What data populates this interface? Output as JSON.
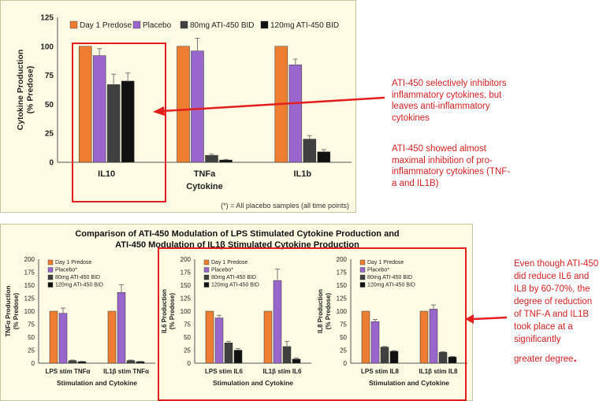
{
  "series_colors": [
    "#ed7d31",
    "#9966cc",
    "#404040",
    "#111111"
  ],
  "highlight_color": "#e21e1e",
  "top_footnote": "(*) = All placebo samples (all time points)",
  "bottom_title_line1": "Comparison of ATI-450 Modulation of LPS Stimulated Cytokine Production and",
  "bottom_title_line2": "ATI-450 Modulation of IL1β Stimulated Cytokine Production",
  "annotations": {
    "top_right_1": "ATI-450 selectively inhibitors inflammatory cytokines, but leaves anti-inflammatory cytokines",
    "top_right_2": "ATI-450 showed almost maximal inhibition of pro-inflammatory cytokines (TNF-a and IL1B)",
    "bottom_right": "Even though ATI-450 did reduce IL6 and IL8 by 60-70%, the degree of reduction of TNF-A and IL1B took place at a significantly",
    "bottom_right_tail": "greater degree",
    "bottom_right_period": "."
  },
  "chart_data": [
    {
      "type": "bar",
      "categories": [
        "IL10",
        "TNFa",
        "IL1b"
      ],
      "series": [
        {
          "name": "Day 1 Predose",
          "values": [
            100,
            100,
            100
          ],
          "errors": [
            0,
            0,
            0
          ]
        },
        {
          "name": "Placebo",
          "values": [
            92,
            96,
            84
          ],
          "errors": [
            6,
            11,
            5
          ]
        },
        {
          "name": "80mg ATI-450 BID",
          "values": [
            67,
            6,
            20
          ],
          "errors": [
            9,
            1,
            3
          ]
        },
        {
          "name": "120mg ATI-450 BID",
          "values": [
            70,
            2,
            9
          ],
          "errors": [
            7,
            0.5,
            2
          ]
        }
      ],
      "title": "",
      "xlabel": "Cytokine",
      "ylabel_line1": "Cytokine Production",
      "ylabel_line2": "(% Predose)",
      "ylim": [
        0,
        125
      ],
      "yticks": [
        "0",
        "25",
        "50",
        "75",
        "100",
        "125"
      ],
      "legend": "top",
      "grid": false
    },
    {
      "type": "bar",
      "categories": [
        "LPS stim TNFα",
        "IL1β stim TNFα"
      ],
      "series": [
        {
          "name": "Day 1 Predose",
          "values": [
            100,
            100
          ],
          "errors": [
            0,
            0
          ]
        },
        {
          "name": "Placebo*",
          "values": [
            96,
            136
          ],
          "errors": [
            10,
            15
          ]
        },
        {
          "name": "80mg ATI-450 BID",
          "values": [
            5,
            5
          ],
          "errors": [
            1,
            1
          ]
        },
        {
          "name": "120mg ATI-450 BID",
          "values": [
            3,
            3
          ],
          "errors": [
            0.5,
            0.5
          ]
        }
      ],
      "xlabel": "Stimulation and Cytokine",
      "ylabel_line1": "TNFα Production",
      "ylabel_line2": "(% Predose)",
      "ylim": [
        0,
        200
      ],
      "yticks": [
        "0",
        "25",
        "50",
        "75",
        "100",
        "125",
        "150",
        "175",
        "200"
      ],
      "legend": "top-left",
      "grid": false
    },
    {
      "type": "bar",
      "categories": [
        "LPS stim IL6",
        "IL1β stim IL6"
      ],
      "series": [
        {
          "name": "Day 1 Predose",
          "values": [
            100,
            100
          ],
          "errors": [
            0,
            0
          ]
        },
        {
          "name": "Placebo*",
          "values": [
            87,
            159
          ],
          "errors": [
            5,
            22
          ]
        },
        {
          "name": "80mg ATI-450 BID",
          "values": [
            39,
            32
          ],
          "errors": [
            3,
            10
          ]
        },
        {
          "name": "120mg ATI-450 BID",
          "values": [
            25,
            8
          ],
          "errors": [
            3,
            2
          ]
        }
      ],
      "xlabel": "Stimulation and Cytokine",
      "ylabel_line1": "IL6 Production",
      "ylabel_line2": "(% Predose)",
      "ylim": [
        0,
        200
      ],
      "yticks": [
        "0",
        "25",
        "50",
        "75",
        "100",
        "125",
        "150",
        "175",
        "200"
      ],
      "legend": "top-left",
      "grid": false
    },
    {
      "type": "bar",
      "categories": [
        "LPS stim IL8",
        "IL1β stim IL8"
      ],
      "series": [
        {
          "name": "Day 1 Predose",
          "values": [
            100,
            100
          ],
          "errors": [
            0,
            0
          ]
        },
        {
          "name": "Placebo*",
          "values": [
            80,
            104
          ],
          "errors": [
            4,
            8
          ]
        },
        {
          "name": "80mg ATI-450 BID",
          "values": [
            31,
            21
          ],
          "errors": [
            1,
            1
          ]
        },
        {
          "name": "120mg ATI-450 BID",
          "values": [
            23,
            12
          ],
          "errors": [
            1,
            1
          ]
        }
      ],
      "xlabel": "Stimulation and Cytokine",
      "ylabel_line1": "IL8 Production",
      "ylabel_line2": "(% Predose)",
      "ylim": [
        0,
        200
      ],
      "yticks": [
        "0",
        "25",
        "50",
        "75",
        "100",
        "125",
        "150",
        "175",
        "200"
      ],
      "legend": "top-left",
      "grid": false
    }
  ]
}
